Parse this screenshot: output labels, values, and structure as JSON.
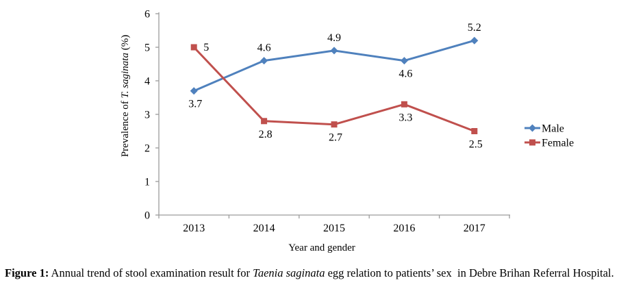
{
  "figure": {
    "caption": {
      "label": "Figure 1:",
      "text_before_italic": " Annual trend of stool examination result for ",
      "italic_term": "Taenia saginata",
      "text_after_italic": " egg relation to patients’ sex  in Debre Brihan Referral Hospital."
    }
  },
  "chart_data": {
    "type": "line",
    "title": "",
    "xlabel": "Year and gender",
    "ylabel": {
      "prefix": "Prevalence of ",
      "italic": "T. saginata",
      "suffix": " (%)"
    },
    "categories": [
      "2013",
      "2014",
      "2015",
      "2016",
      "2017"
    ],
    "series": [
      {
        "name": "Male",
        "color": "#4F81BD",
        "marker": "diamond",
        "values": [
          3.7,
          4.6,
          4.9,
          4.6,
          5.2
        ],
        "data_labels": [
          "3.7",
          "4.6",
          "4.9",
          "4.6",
          "5.2"
        ],
        "label_positions": [
          "below",
          "above",
          "above",
          "below",
          "above"
        ]
      },
      {
        "name": "Female",
        "color": "#C0504D",
        "marker": "square",
        "values": [
          5,
          2.8,
          2.7,
          3.3,
          2.5
        ],
        "data_labels": [
          "5",
          "2.8",
          "2.7",
          "3.3",
          "2.5"
        ],
        "label_positions": [
          "right",
          "below",
          "below",
          "below",
          "below"
        ]
      }
    ],
    "ylim": [
      0,
      6
    ],
    "yticks": [
      0,
      1,
      2,
      3,
      4,
      5,
      6
    ],
    "grid": false,
    "legend_position": "right",
    "axis_color": "#9c9c9c",
    "text_color": "#000000"
  }
}
